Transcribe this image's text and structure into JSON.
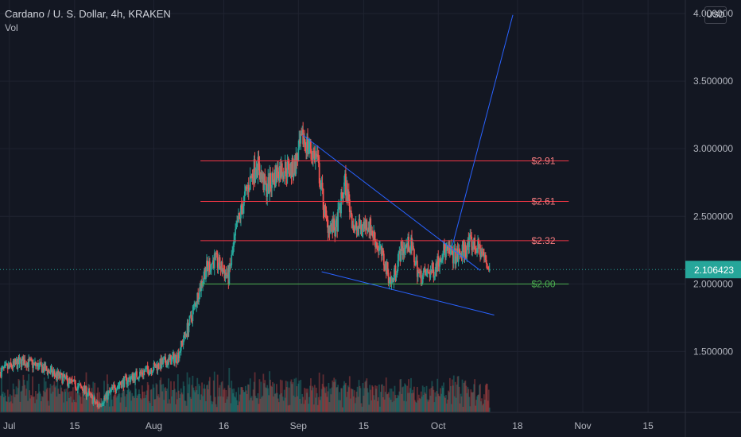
{
  "header": {
    "symbol_title": "Cardano / U. S. Dollar, 4h, KRAKEN",
    "volume_label": "Vol",
    "currency_button": "USD"
  },
  "chart_data": {
    "type": "candlestick",
    "title": "Cardano / U. S. Dollar, 4h, KRAKEN",
    "ylim": [
      1.05,
      4.1
    ],
    "y_ticks": [
      "4.000000",
      "3.500000",
      "3.000000",
      "2.500000",
      "2.000000",
      "1.500000"
    ],
    "x_ticks": [
      {
        "label": "Jul",
        "date": "2021-07-01"
      },
      {
        "label": "15",
        "date": "2021-07-15"
      },
      {
        "label": "Aug",
        "date": "2021-08-01"
      },
      {
        "label": "16",
        "date": "2021-08-16"
      },
      {
        "label": "Sep",
        "date": "2021-09-01"
      },
      {
        "label": "15",
        "date": "2021-09-15"
      },
      {
        "label": "Oct",
        "date": "2021-10-01"
      },
      {
        "label": "18",
        "date": "2021-10-18"
      },
      {
        "label": "Nov",
        "date": "2021-11-01"
      },
      {
        "label": "15",
        "date": "2021-11-15"
      }
    ],
    "last_price": {
      "value": 2.106423,
      "label": "2.106423"
    },
    "price_path": [
      {
        "date": "2021-06-29",
        "price": 1.35
      },
      {
        "date": "2021-07-04",
        "price": 1.43
      },
      {
        "date": "2021-07-08",
        "price": 1.38
      },
      {
        "date": "2021-07-12",
        "price": 1.31
      },
      {
        "date": "2021-07-17",
        "price": 1.22
      },
      {
        "date": "2021-07-20",
        "price": 1.1
      },
      {
        "date": "2021-07-24",
        "price": 1.25
      },
      {
        "date": "2021-07-28",
        "price": 1.32
      },
      {
        "date": "2021-08-02",
        "price": 1.4
      },
      {
        "date": "2021-08-06",
        "price": 1.46
      },
      {
        "date": "2021-08-09",
        "price": 1.75
      },
      {
        "date": "2021-08-12",
        "price": 2.1
      },
      {
        "date": "2021-08-14",
        "price": 2.18
      },
      {
        "date": "2021-08-17",
        "price": 2.05
      },
      {
        "date": "2021-08-19",
        "price": 2.45
      },
      {
        "date": "2021-08-21",
        "price": 2.7
      },
      {
        "date": "2021-08-23",
        "price": 2.9
      },
      {
        "date": "2021-08-25",
        "price": 2.7
      },
      {
        "date": "2021-08-28",
        "price": 2.85
      },
      {
        "date": "2021-08-31",
        "price": 2.85
      },
      {
        "date": "2021-09-02",
        "price": 3.08
      },
      {
        "date": "2021-09-05",
        "price": 2.92
      },
      {
        "date": "2021-09-07",
        "price": 2.45
      },
      {
        "date": "2021-09-09",
        "price": 2.4
      },
      {
        "date": "2021-09-11",
        "price": 2.75
      },
      {
        "date": "2021-09-13",
        "price": 2.4
      },
      {
        "date": "2021-09-16",
        "price": 2.45
      },
      {
        "date": "2021-09-19",
        "price": 2.2
      },
      {
        "date": "2021-09-21",
        "price": 2.0
      },
      {
        "date": "2021-09-23",
        "price": 2.25
      },
      {
        "date": "2021-09-25",
        "price": 2.3
      },
      {
        "date": "2021-09-27",
        "price": 2.05
      },
      {
        "date": "2021-09-30",
        "price": 2.1
      },
      {
        "date": "2021-10-02",
        "price": 2.25
      },
      {
        "date": "2021-10-05",
        "price": 2.2
      },
      {
        "date": "2021-10-08",
        "price": 2.3
      },
      {
        "date": "2021-10-10",
        "price": 2.25
      },
      {
        "date": "2021-10-12",
        "price": 2.11
      }
    ],
    "levels": [
      {
        "label": "$2.91",
        "value": 2.91,
        "color": "#f23645",
        "label_color": "#f77c80"
      },
      {
        "label": "$2.61",
        "value": 2.61,
        "color": "#f23645",
        "label_color": "#f77c80"
      },
      {
        "label": "$2.32",
        "value": 2.32,
        "color": "#f23645",
        "label_color": "#f77c80"
      },
      {
        "label": "$2.00",
        "value": 2.0,
        "color": "#4caf50",
        "label_color": "#4caf50"
      }
    ],
    "trend_lines": [
      {
        "from": {
          "date": "2021-09-02",
          "price": 3.1
        },
        "to": {
          "date": "2021-10-10",
          "price": 2.1
        }
      },
      {
        "from": {
          "date": "2021-09-06",
          "price": 2.09
        },
        "to": {
          "date": "2021-10-13",
          "price": 1.77
        }
      },
      {
        "from": {
          "date": "2021-10-04",
          "price": 2.28
        },
        "to": {
          "date": "2021-10-17",
          "price": 3.99
        }
      }
    ],
    "colors": {
      "background": "#131722",
      "up": "#26a69a",
      "down": "#ef5350",
      "grid": "#1f2330",
      "trend": "#2962ff",
      "axis_text": "#b2b5be",
      "price_line": "#26a69a"
    }
  }
}
